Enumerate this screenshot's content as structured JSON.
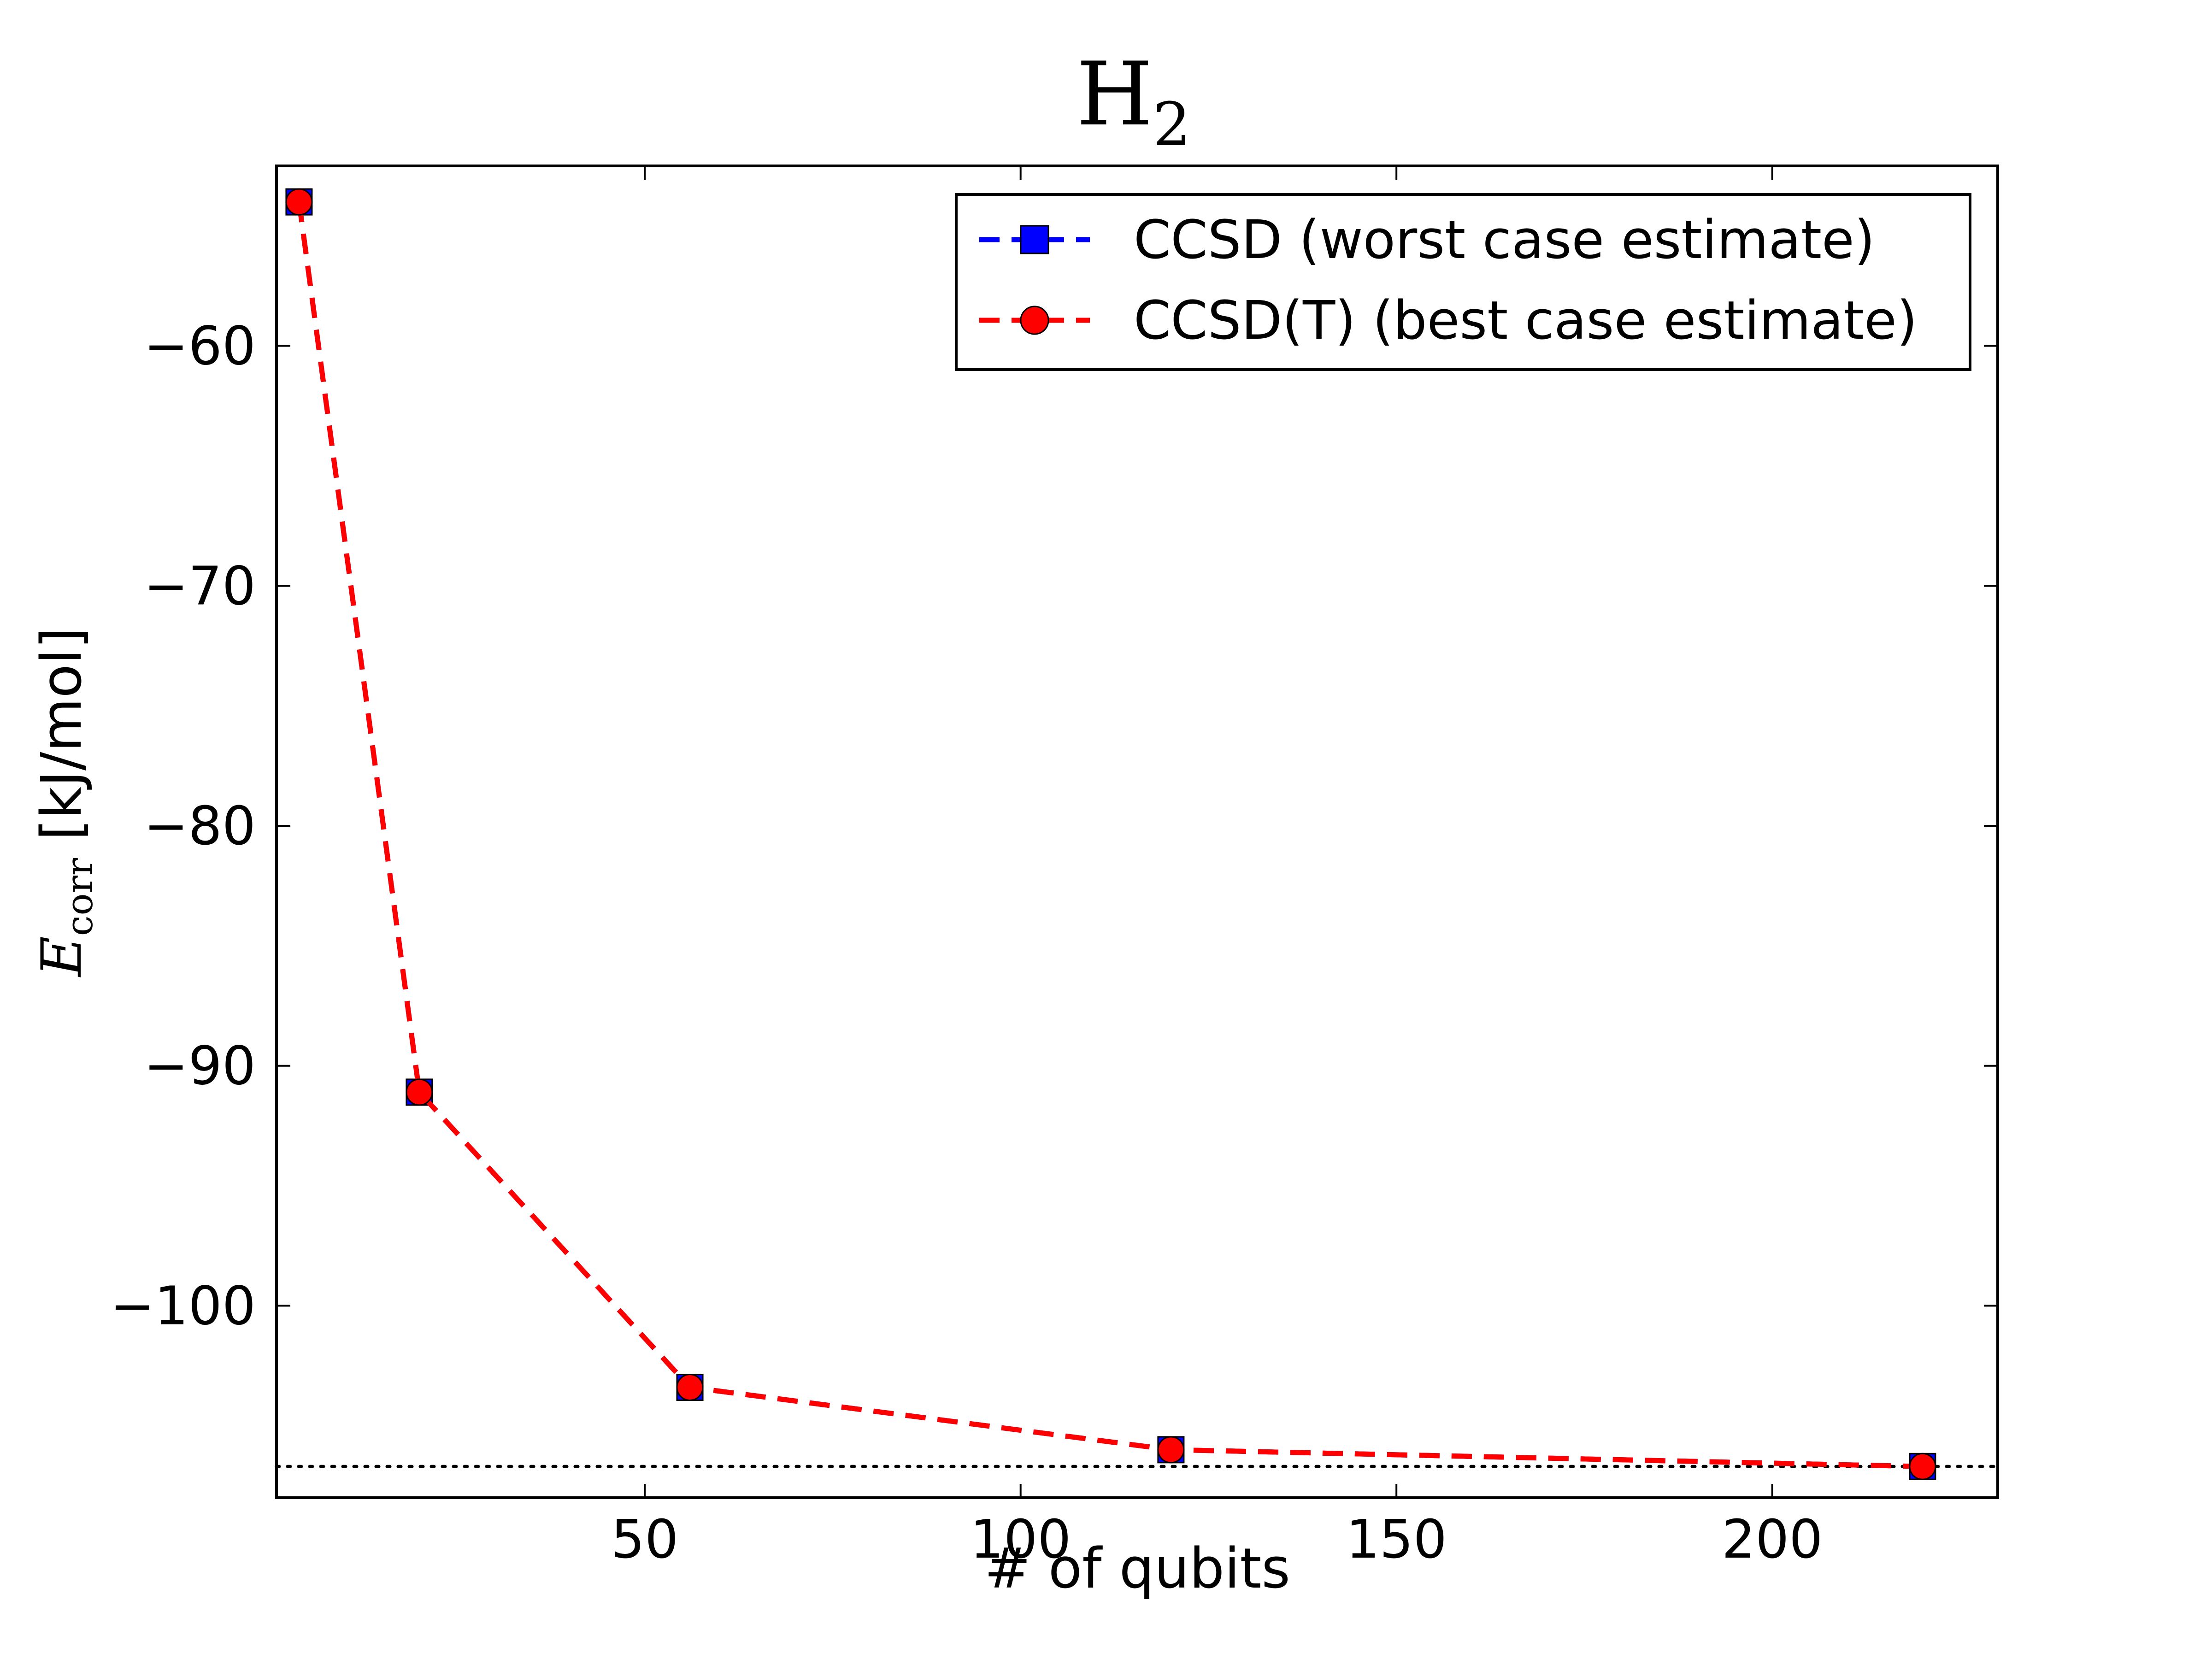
{
  "chart_data": {
    "type": "line",
    "title": "H",
    "title_subscript": "2",
    "xlabel": "# of qubits",
    "ylabel_symbol": "E",
    "ylabel_subscript": "corr",
    "ylabel_unit": "[kJ/mol]",
    "xlim": [
      1,
      230
    ],
    "ylim": [
      -108,
      -52.5
    ],
    "x_ticks": [
      50,
      100,
      150,
      200
    ],
    "y_ticks": [
      -60,
      -70,
      -80,
      -90,
      -100
    ],
    "y_tick_labels": [
      "−60",
      "−70",
      "−80",
      "−90",
      "−100"
    ],
    "reference_line": {
      "y": -106.7,
      "style": "dotted",
      "color": "#000000"
    },
    "legend_position": "top-right",
    "grid": false,
    "series": [
      {
        "name": "CCSD (worst case estimate)",
        "color": "#0000ff",
        "marker": "square",
        "line": "dashed",
        "x": [
          4,
          20,
          56,
          120,
          220
        ],
        "y": [
          -54.0,
          -91.1,
          -103.4,
          -106.0,
          -106.7
        ]
      },
      {
        "name": "CCSD(T) (best case estimate)",
        "color": "#ff0000",
        "marker": "circle",
        "line": "dashed",
        "x": [
          4,
          20,
          56,
          120,
          220
        ],
        "y": [
          -54.0,
          -91.1,
          -103.4,
          -106.0,
          -106.7
        ]
      }
    ]
  }
}
